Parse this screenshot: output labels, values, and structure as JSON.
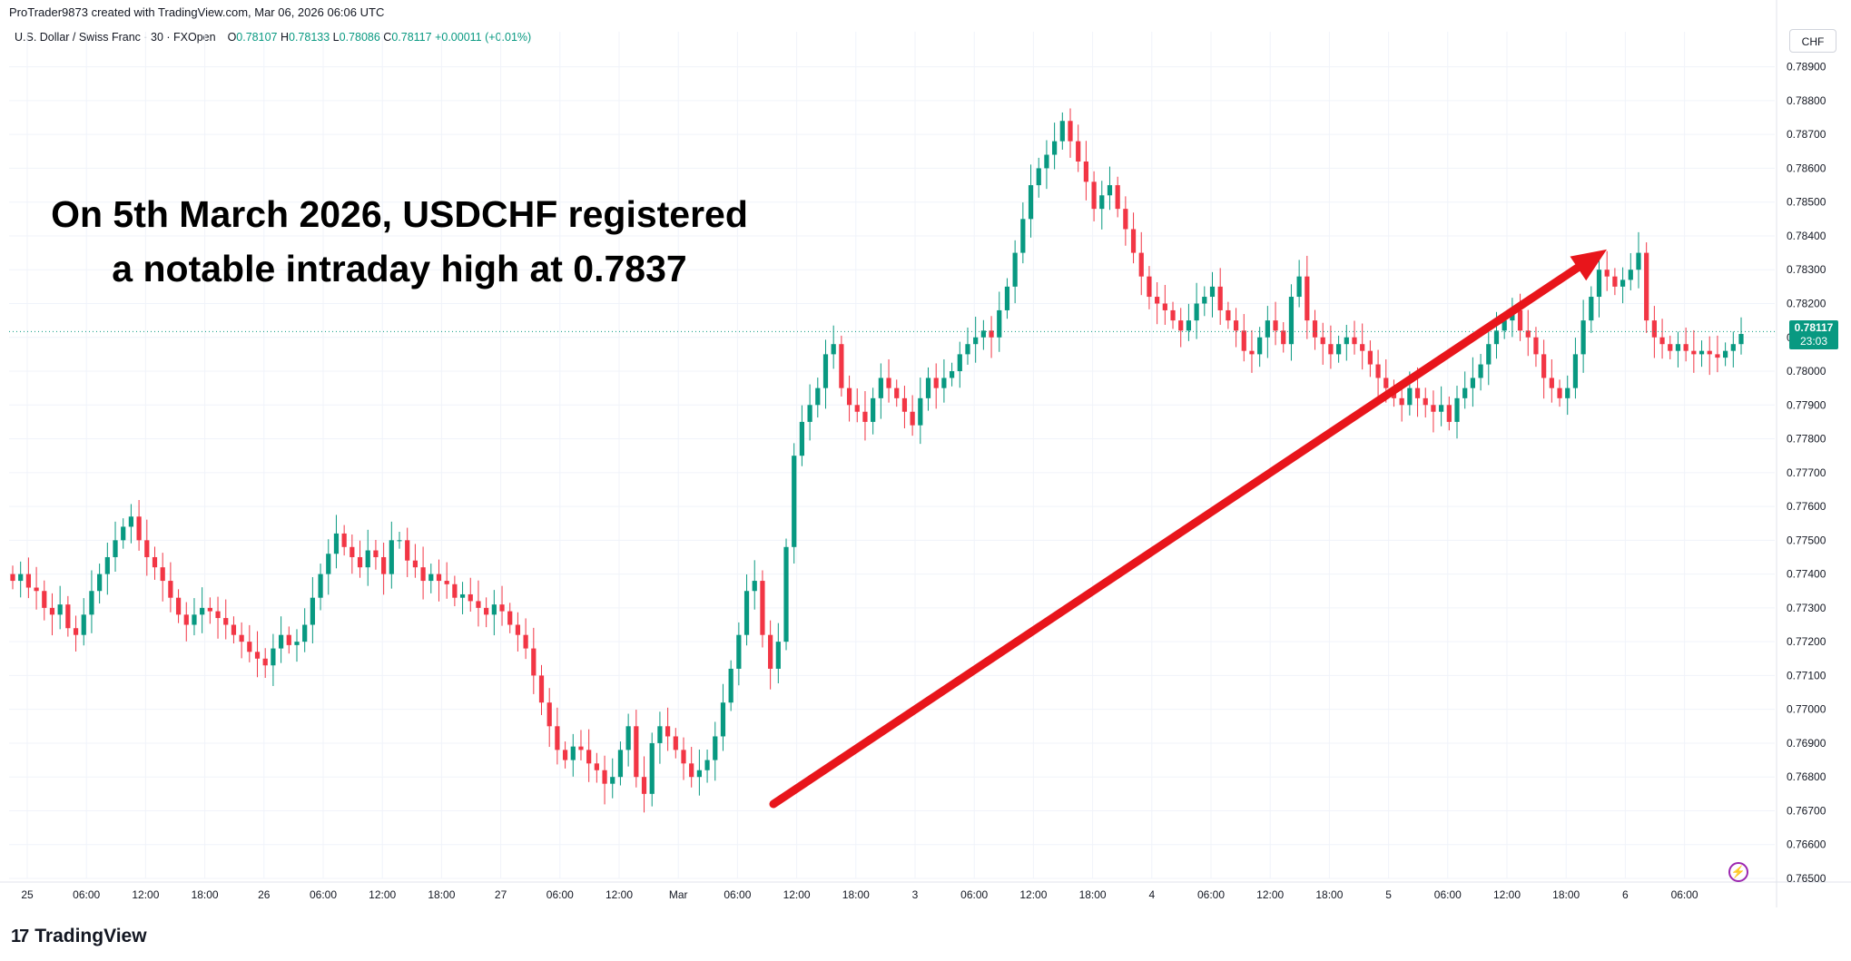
{
  "header": {
    "attribution": "ProTrader9873 created with TradingView.com, Mar 06, 2026 06:06 UTC"
  },
  "legend": {
    "symbol": "U.S. Dollar / Swiss Franc · 30 · FXOpen",
    "open_label": "O",
    "open": "0.78107",
    "high_label": "H",
    "high": "0.78133",
    "low_label": "L",
    "low": "0.78086",
    "close_label": "C",
    "close": "0.78117",
    "change": "+0.00011 (+0.01%)"
  },
  "currency_button": "CHF",
  "price_tag": {
    "price": "0.78117",
    "countdown": "23:03"
  },
  "annotation": {
    "line1": "On 5th March 2026, USDCHF registered",
    "line2": "a notable intraday high at 0.7837"
  },
  "brand": "TradingView",
  "colors": {
    "up": "#089981",
    "down": "#f23645",
    "arrow": "#e8151b",
    "grid": "#f0f3fa"
  },
  "icons": {
    "zap": "lightning-icon",
    "logo": "tradingview-logo-icon"
  },
  "chart_data": {
    "type": "candlestick",
    "symbol": "USDCHF",
    "interval": "30",
    "ylim": [
      0.765,
      0.7895
    ],
    "y_ticks": [
      "0.78900",
      "0.78800",
      "0.78700",
      "0.78600",
      "0.78500",
      "0.78400",
      "0.78300",
      "0.78200",
      "0.78100",
      "0.78000",
      "0.77900",
      "0.77800",
      "0.77700",
      "0.77600",
      "0.77500",
      "0.77400",
      "0.77300",
      "0.77200",
      "0.77100",
      "0.77000",
      "0.76900",
      "0.76800",
      "0.76700",
      "0.76600",
      "0.76500"
    ],
    "x_ticks": [
      "25",
      "06:00",
      "12:00",
      "18:00",
      "26",
      "06:00",
      "12:00",
      "18:00",
      "27",
      "06:00",
      "12:00",
      "Mar",
      "06:00",
      "12:00",
      "18:00",
      "3",
      "06:00",
      "12:00",
      "18:00",
      "4",
      "06:00",
      "12:00",
      "18:00",
      "5",
      "06:00",
      "12:00",
      "18:00",
      "6",
      "06:00"
    ],
    "last_price": 0.78117,
    "closes": [
      0.7738,
      0.774,
      0.7736,
      0.7735,
      0.773,
      0.7728,
      0.7731,
      0.7724,
      0.7722,
      0.7728,
      0.7735,
      0.774,
      0.7745,
      0.775,
      0.7754,
      0.7757,
      0.775,
      0.7745,
      0.7742,
      0.7738,
      0.7733,
      0.7728,
      0.7725,
      0.7728,
      0.773,
      0.7729,
      0.7727,
      0.7725,
      0.7722,
      0.772,
      0.7717,
      0.7715,
      0.7713,
      0.7718,
      0.7722,
      0.7719,
      0.772,
      0.7725,
      0.7733,
      0.774,
      0.7746,
      0.7752,
      0.7748,
      0.7745,
      0.7742,
      0.7747,
      0.7745,
      0.774,
      0.775,
      0.775,
      0.7744,
      0.7742,
      0.7738,
      0.774,
      0.7738,
      0.7737,
      0.7733,
      0.7734,
      0.7732,
      0.773,
      0.7728,
      0.7731,
      0.7729,
      0.7725,
      0.7722,
      0.7718,
      0.771,
      0.7702,
      0.7695,
      0.7688,
      0.7685,
      0.7689,
      0.7688,
      0.7684,
      0.7682,
      0.7678,
      0.768,
      0.7688,
      0.7695,
      0.768,
      0.7675,
      0.769,
      0.7695,
      0.7692,
      0.7688,
      0.7684,
      0.768,
      0.7682,
      0.7685,
      0.7692,
      0.7702,
      0.7712,
      0.7722,
      0.7735,
      0.7738,
      0.7722,
      0.7712,
      0.772,
      0.7748,
      0.7775,
      0.7785,
      0.779,
      0.7795,
      0.7805,
      0.7808,
      0.7795,
      0.779,
      0.7788,
      0.7785,
      0.7792,
      0.7798,
      0.7795,
      0.7792,
      0.7788,
      0.7784,
      0.7792,
      0.7798,
      0.7795,
      0.7798,
      0.78,
      0.7805,
      0.7808,
      0.781,
      0.7812,
      0.781,
      0.7818,
      0.7825,
      0.7835,
      0.7845,
      0.7855,
      0.786,
      0.7864,
      0.7868,
      0.7874,
      0.7868,
      0.7862,
      0.7856,
      0.7848,
      0.7852,
      0.7855,
      0.7848,
      0.7842,
      0.7835,
      0.7828,
      0.7822,
      0.782,
      0.7818,
      0.7815,
      0.7812,
      0.7815,
      0.782,
      0.7822,
      0.7825,
      0.7818,
      0.7815,
      0.7812,
      0.7806,
      0.7805,
      0.781,
      0.7815,
      0.7812,
      0.7808,
      0.7822,
      0.7828,
      0.7815,
      0.781,
      0.7808,
      0.7805,
      0.7808,
      0.781,
      0.7808,
      0.7806,
      0.7802,
      0.7798,
      0.7795,
      0.7792,
      0.779,
      0.7795,
      0.7792,
      0.779,
      0.7788,
      0.779,
      0.7785,
      0.7792,
      0.7795,
      0.7798,
      0.7802,
      0.7808,
      0.7812,
      0.7815,
      0.7818,
      0.7812,
      0.781,
      0.7805,
      0.7798,
      0.7795,
      0.7792,
      0.7795,
      0.7805,
      0.7815,
      0.7822,
      0.783,
      0.7828,
      0.7825,
      0.7827,
      0.783,
      0.7835,
      0.7815,
      0.781,
      0.7808,
      0.7806,
      0.7808,
      0.7806,
      0.7805,
      0.7806,
      0.7805,
      0.7804,
      0.7806,
      0.7808,
      0.7811
    ]
  }
}
